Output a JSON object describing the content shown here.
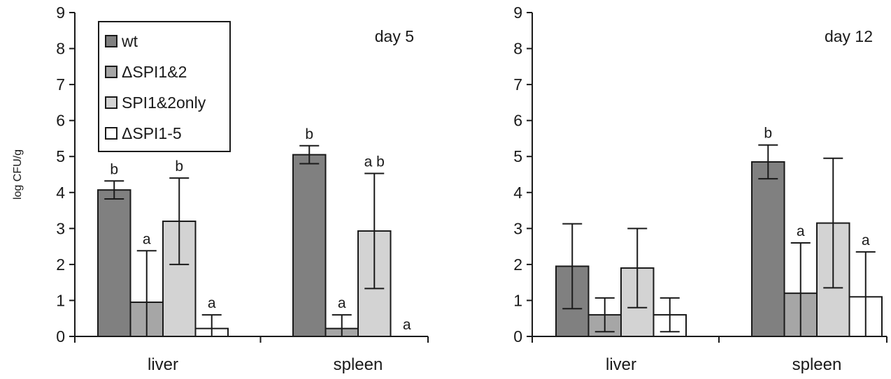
{
  "chart_data": [
    {
      "type": "bar",
      "title": "day 5",
      "ylabel": "log CFU/g",
      "xlabel": "",
      "ylim": [
        0,
        9
      ],
      "yticks": [
        0,
        1,
        2,
        3,
        4,
        5,
        6,
        7,
        8,
        9
      ],
      "categories": [
        "liver",
        "spleen"
      ],
      "legend_position": "top-left",
      "series": [
        {
          "name": "wt",
          "color": "#808080",
          "values": [
            4.07,
            5.05
          ],
          "errors": [
            0.25,
            0.25
          ],
          "labels": [
            "b",
            "b"
          ]
        },
        {
          "name": "ΔSPI1&2",
          "color": "#a6a6a6",
          "values": [
            0.95,
            0.22
          ],
          "errors": [
            1.43,
            0.38
          ],
          "labels": [
            "a",
            "a"
          ]
        },
        {
          "name": "SPI1&2only",
          "color": "#d3d3d3",
          "values": [
            3.2,
            2.93
          ],
          "errors": [
            1.2,
            1.6
          ],
          "labels": [
            "b",
            "a b"
          ]
        },
        {
          "name": "ΔSPI1-5",
          "color": "#ffffff",
          "values": [
            0.22,
            0.0
          ],
          "errors": [
            0.38,
            0.0
          ],
          "labels": [
            "a",
            "a"
          ]
        }
      ]
    },
    {
      "type": "bar",
      "title": "day 12",
      "ylabel": "",
      "xlabel": "",
      "ylim": [
        0,
        9
      ],
      "yticks": [
        0,
        1,
        2,
        3,
        4,
        5,
        6,
        7,
        8,
        9
      ],
      "categories": [
        "liver",
        "spleen"
      ],
      "series": [
        {
          "name": "wt",
          "color": "#808080",
          "values": [
            1.95,
            4.85
          ],
          "errors": [
            1.18,
            0.47
          ],
          "labels": [
            "",
            "b"
          ]
        },
        {
          "name": "ΔSPI1&2",
          "color": "#a6a6a6",
          "values": [
            0.6,
            1.2
          ],
          "errors": [
            0.47,
            1.4
          ],
          "labels": [
            "",
            "a"
          ]
        },
        {
          "name": "SPI1&2only",
          "color": "#d3d3d3",
          "values": [
            1.9,
            3.15
          ],
          "errors": [
            1.1,
            1.8
          ],
          "labels": [
            "",
            ""
          ]
        },
        {
          "name": "ΔSPI1-5",
          "color": "#ffffff",
          "values": [
            0.6,
            1.1
          ],
          "errors": [
            0.47,
            1.25
          ],
          "labels": [
            "",
            "a"
          ]
        }
      ]
    }
  ]
}
